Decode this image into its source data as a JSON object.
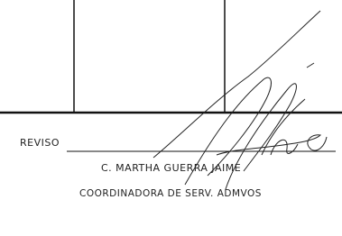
{
  "reviewer": {
    "label": "REVISO",
    "name": "C. MARTHA GUERRA JAIME",
    "position": "COORDINADORA DE SERV. ADMVOS"
  }
}
